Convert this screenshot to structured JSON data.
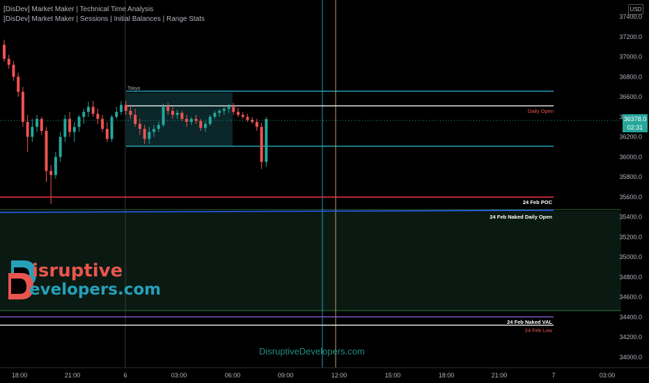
{
  "indicators": [
    "[DisDev] Market Maker | Technical Time Analysis",
    "[DisDev] Market Maker | Sessions | Initial Balances | Range Stats"
  ],
  "currency": "USD",
  "price_tag": {
    "price": "36378.0",
    "countdown": "02:31"
  },
  "price_axis": {
    "ticks": [
      "37400.0",
      "37200.0",
      "37000.0",
      "36800.0",
      "36600.0",
      "36400.0",
      "36200.0",
      "36000.0",
      "35800.0",
      "35600.0",
      "35400.0",
      "35200.0",
      "35000.0",
      "34800.0",
      "34600.0",
      "34400.0",
      "34200.0",
      "34000.0"
    ]
  },
  "time_axis": {
    "ticks": [
      "18:00",
      "21:00",
      "6",
      "03:00",
      "06:00",
      "09:00",
      "12:00",
      "15:00",
      "18:00",
      "21:00",
      "7",
      "03:00"
    ]
  },
  "session": {
    "label": "Tokyo"
  },
  "levels": {
    "daily_open": "Daily Open",
    "poc": "24 Feb POC",
    "naked_daily_open": "24 Feb Naked Daily Open",
    "naked_val": "24 Feb Naked VAL",
    "low": "24 Feb Low"
  },
  "colors": {
    "up": "#26a69a",
    "down": "#ef5350",
    "session_line": "#26a0b8",
    "poc": "#f23645",
    "naked_open": "#2962ff",
    "val": "#7e57c2",
    "logo_teal": "#26a0b8",
    "logo_red": "#e8554e"
  },
  "logo": {
    "first": "isruptive",
    "second": "evelopers.com",
    "initial": "D"
  },
  "watermark": "DisruptiveDevelopers.com",
  "chart_data": {
    "type": "candlestick",
    "candles": [
      {
        "o": 37120,
        "h": 37170,
        "l": 36950,
        "c": 36980
      },
      {
        "o": 36980,
        "h": 37020,
        "l": 36880,
        "c": 36920
      },
      {
        "o": 36920,
        "h": 36960,
        "l": 36760,
        "c": 36800
      },
      {
        "o": 36800,
        "h": 36840,
        "l": 36600,
        "c": 36650
      },
      {
        "o": 36650,
        "h": 36700,
        "l": 36300,
        "c": 36350
      },
      {
        "o": 36350,
        "h": 36420,
        "l": 36050,
        "c": 36200
      },
      {
        "o": 36200,
        "h": 36380,
        "l": 36150,
        "c": 36300
      },
      {
        "o": 36300,
        "h": 36420,
        "l": 36250,
        "c": 36380
      },
      {
        "o": 36380,
        "h": 36400,
        "l": 36220,
        "c": 36260
      },
      {
        "o": 36260,
        "h": 36300,
        "l": 35750,
        "c": 35860
      },
      {
        "o": 35860,
        "h": 35920,
        "l": 35530,
        "c": 35820
      },
      {
        "o": 35820,
        "h": 36050,
        "l": 35780,
        "c": 36000
      },
      {
        "o": 36000,
        "h": 36250,
        "l": 35950,
        "c": 36200
      },
      {
        "o": 36200,
        "h": 36420,
        "l": 36150,
        "c": 36380
      },
      {
        "o": 36380,
        "h": 36450,
        "l": 36200,
        "c": 36250
      },
      {
        "o": 36250,
        "h": 36350,
        "l": 36150,
        "c": 36300
      },
      {
        "o": 36300,
        "h": 36420,
        "l": 36250,
        "c": 36400
      },
      {
        "o": 36400,
        "h": 36480,
        "l": 36330,
        "c": 36450
      },
      {
        "o": 36450,
        "h": 36550,
        "l": 36400,
        "c": 36500
      },
      {
        "o": 36500,
        "h": 36560,
        "l": 36400,
        "c": 36430
      },
      {
        "o": 36430,
        "h": 36480,
        "l": 36330,
        "c": 36380
      },
      {
        "o": 36380,
        "h": 36420,
        "l": 36250,
        "c": 36280
      },
      {
        "o": 36280,
        "h": 36350,
        "l": 36150,
        "c": 36180
      },
      {
        "o": 36180,
        "h": 36420,
        "l": 36150,
        "c": 36400
      },
      {
        "o": 36400,
        "h": 36500,
        "l": 36380,
        "c": 36450
      },
      {
        "o": 36450,
        "h": 36560,
        "l": 36420,
        "c": 36520
      },
      {
        "o": 36520,
        "h": 36560,
        "l": 36420,
        "c": 36460
      },
      {
        "o": 36460,
        "h": 36520,
        "l": 36380,
        "c": 36420
      },
      {
        "o": 36420,
        "h": 36480,
        "l": 36300,
        "c": 36330
      },
      {
        "o": 36330,
        "h": 36380,
        "l": 36220,
        "c": 36280
      },
      {
        "o": 36280,
        "h": 36320,
        "l": 36130,
        "c": 36180
      },
      {
        "o": 36180,
        "h": 36300,
        "l": 36130,
        "c": 36250
      },
      {
        "o": 36250,
        "h": 36320,
        "l": 36200,
        "c": 36280
      },
      {
        "o": 36280,
        "h": 36350,
        "l": 36250,
        "c": 36320
      },
      {
        "o": 36320,
        "h": 36530,
        "l": 36300,
        "c": 36500
      },
      {
        "o": 36500,
        "h": 36540,
        "l": 36420,
        "c": 36460
      },
      {
        "o": 36460,
        "h": 36500,
        "l": 36380,
        "c": 36420
      },
      {
        "o": 36420,
        "h": 36470,
        "l": 36380,
        "c": 36440
      },
      {
        "o": 36440,
        "h": 36460,
        "l": 36360,
        "c": 36380
      },
      {
        "o": 36380,
        "h": 36420,
        "l": 36300,
        "c": 36350
      },
      {
        "o": 36350,
        "h": 36400,
        "l": 36320,
        "c": 36380
      },
      {
        "o": 36380,
        "h": 36420,
        "l": 36330,
        "c": 36360
      },
      {
        "o": 36360,
        "h": 36380,
        "l": 36260,
        "c": 36290
      },
      {
        "o": 36290,
        "h": 36360,
        "l": 36250,
        "c": 36330
      },
      {
        "o": 36330,
        "h": 36420,
        "l": 36310,
        "c": 36400
      },
      {
        "o": 36400,
        "h": 36460,
        "l": 36380,
        "c": 36440
      },
      {
        "o": 36440,
        "h": 36480,
        "l": 36400,
        "c": 36460
      },
      {
        "o": 36460,
        "h": 36500,
        "l": 36420,
        "c": 36480
      },
      {
        "o": 36480,
        "h": 36530,
        "l": 36440,
        "c": 36500
      },
      {
        "o": 36500,
        "h": 36540,
        "l": 36420,
        "c": 36450
      },
      {
        "o": 36450,
        "h": 36490,
        "l": 36400,
        "c": 36420
      },
      {
        "o": 36420,
        "h": 36450,
        "l": 36380,
        "c": 36400
      },
      {
        "o": 36400,
        "h": 36430,
        "l": 36350,
        "c": 36370
      },
      {
        "o": 36370,
        "h": 36400,
        "l": 36330,
        "c": 36350
      },
      {
        "o": 36350,
        "h": 36380,
        "l": 36260,
        "c": 36300
      },
      {
        "o": 36300,
        "h": 36340,
        "l": 35880,
        "c": 35950
      },
      {
        "o": 35950,
        "h": 36400,
        "l": 35900,
        "c": 36378
      }
    ]
  }
}
